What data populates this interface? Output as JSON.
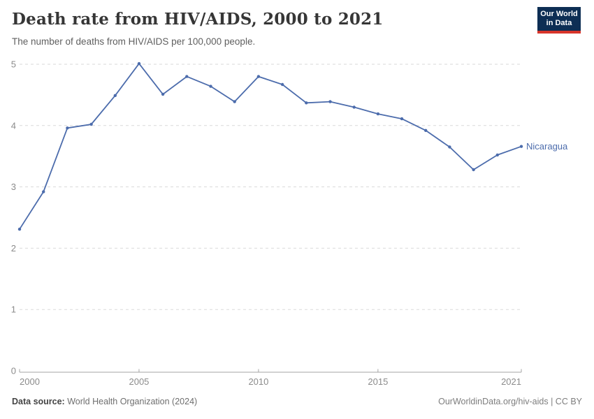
{
  "header": {
    "title": "Death rate from HIV/AIDS, 2000 to 2021",
    "subtitle": "The number of deaths from HIV/AIDS per 100,000 people."
  },
  "logo": {
    "line1": "Our World",
    "line2": "in Data",
    "background_color": "#0d2e54",
    "accent_color": "#d7352b"
  },
  "footer": {
    "source_label": "Data source:",
    "source_value": " World Health Organization (2024)",
    "credit": "OurWorldinData.org/hiv-aids | CC BY"
  },
  "colors": {
    "line": "#4c6cac",
    "gridline": "#dadada",
    "axis": "#a5a5a5",
    "tick_label": "#8b8b8b"
  },
  "chart_data": {
    "type": "line",
    "title": "Death rate from HIV/AIDS, 2000 to 2021",
    "xlabel": "",
    "ylabel": "",
    "x": [
      2000,
      2001,
      2002,
      2003,
      2004,
      2005,
      2006,
      2007,
      2008,
      2009,
      2010,
      2011,
      2012,
      2013,
      2014,
      2015,
      2016,
      2017,
      2018,
      2019,
      2020,
      2021
    ],
    "series": [
      {
        "name": "Nicaragua",
        "color": "#4c6cac",
        "values": [
          2.31,
          2.92,
          3.96,
          4.02,
          4.49,
          5.01,
          4.51,
          4.8,
          4.64,
          4.39,
          4.8,
          4.67,
          4.37,
          4.39,
          4.3,
          4.19,
          4.11,
          3.92,
          3.65,
          3.28,
          3.52,
          3.66
        ]
      }
    ],
    "ylim": [
      0,
      5
    ],
    "y_ticks": [
      0,
      1,
      2,
      3,
      4,
      5
    ],
    "x_ticks": [
      2000,
      2005,
      2010,
      2015,
      2021
    ],
    "grid": true,
    "legend_position": "entity-label-right-of-line"
  }
}
